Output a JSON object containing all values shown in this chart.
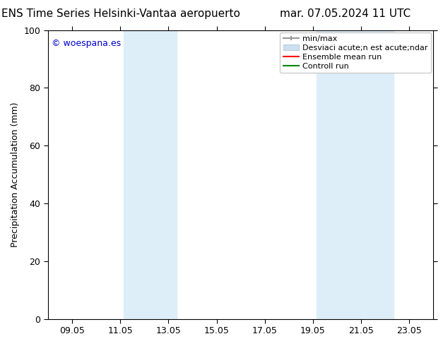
{
  "title_left": "ENS Time Series Helsinki-Vantaa aeropuerto",
  "title_right": "mar. 07.05.2024 11 UTC",
  "ylabel": "Precipitation Accumulation (mm)",
  "watermark": "© woespana.es",
  "watermark_color": "#0000cc",
  "ylim": [
    0,
    100
  ],
  "yticks": [
    0,
    20,
    40,
    60,
    80,
    100
  ],
  "xtick_labels": [
    "09.05",
    "11.05",
    "13.05",
    "15.05",
    "17.05",
    "19.05",
    "21.05",
    "23.05"
  ],
  "xtick_positions": [
    0,
    2,
    4,
    6,
    8,
    10,
    12,
    14
  ],
  "x_min": -1,
  "x_max": 15,
  "background_color": "#ffffff",
  "plot_bg_color": "#ffffff",
  "shaded_bands": [
    {
      "x_start": 2.15,
      "x_end": 4.35,
      "color": "#ddeef8"
    },
    {
      "x_start": 10.15,
      "x_end": 11.7,
      "color": "#ddeef8"
    },
    {
      "x_start": 11.7,
      "x_end": 13.35,
      "color": "#ddeef8"
    }
  ],
  "legend_label_minmax": "min/max",
  "legend_label_std": "Desviaci acute;n est acute;ndar",
  "legend_label_ensemble": "Ensemble mean run",
  "legend_label_control": "Controll run",
  "legend_color_minmax": "#999999",
  "legend_color_std": "#cce0f0",
  "legend_color_ensemble": "#ff0000",
  "legend_color_control": "#008800",
  "title_fontsize": 11,
  "axis_label_fontsize": 9,
  "tick_fontsize": 9,
  "legend_fontsize": 8
}
